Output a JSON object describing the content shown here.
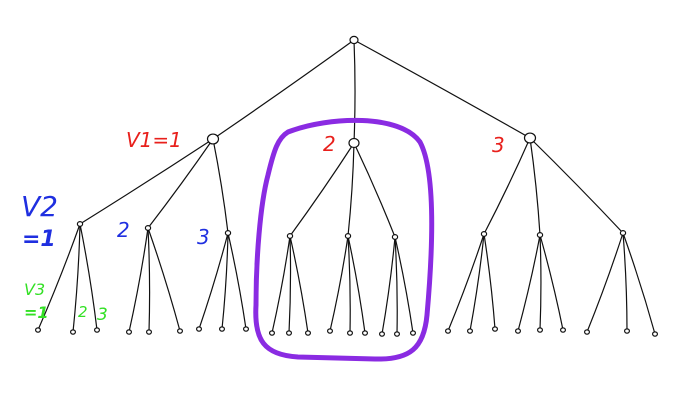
{
  "colors": {
    "level1": "#e8201c",
    "level2": "#1f2fe0",
    "level3": "#33e025",
    "highlight": "#8a2be2",
    "tree": "#111111"
  },
  "labels": {
    "v1_eq_1": "V1=1",
    "v1_2": "2",
    "v1_3": "3",
    "v2_title": "V2",
    "v2_eq_1": "=1",
    "v2_2": "2",
    "v2_3": "3",
    "v3_title": "V3",
    "v3_eq_1": "=1",
    "v3_2": "2",
    "v3_3": "3"
  },
  "tree": {
    "branching": [
      3,
      3,
      3
    ],
    "highlighted_subtree": "V1=2"
  }
}
